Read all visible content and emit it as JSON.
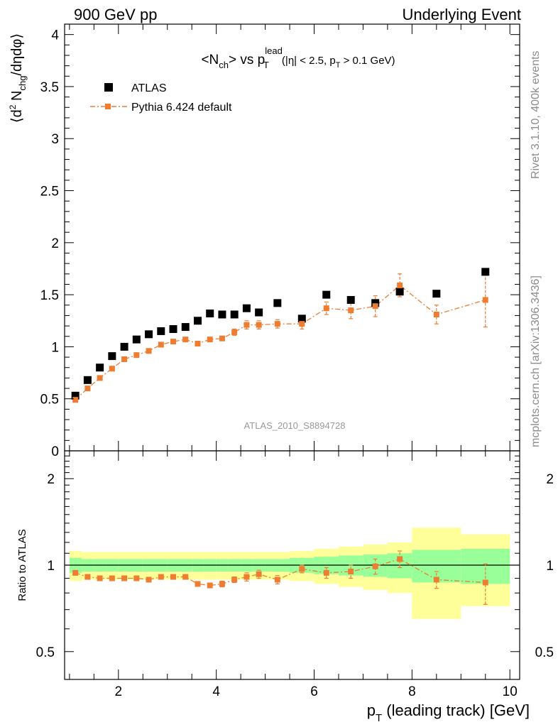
{
  "header": {
    "left": "900 GeV pp",
    "right": "Underlying Event"
  },
  "side_labels": {
    "rivet": "Rivet 3.1.10,  400k events",
    "mcplots": "mcplots.cern.ch [arXiv:1306.3436]"
  },
  "plot_title": {
    "main": "<N",
    "ch_sub": "ch",
    "vs": "> vs p",
    "lead_sup": "lead",
    "t_sub": "T",
    "cut_1": " (|η| < 2.5, p",
    "cut_t_sub": "T",
    "cut_2": " > 0.1 GeV)"
  },
  "analysis_id": "ATLAS_2010_S8894728",
  "colors": {
    "data": "#000000",
    "mc": "#ee7d32",
    "band_inner": "#99ff99",
    "band_outer": "#ffff99",
    "side_text": "#8c8c8c"
  },
  "chart_data": [
    {
      "type": "scatter",
      "panel": "main",
      "ylabel": "⟨d² N_chg/dηdφ⟩",
      "xlim": [
        0.9,
        10.2
      ],
      "ylim": [
        0,
        4.1
      ],
      "yticks": [
        "0",
        "0.5",
        "1",
        "1.5",
        "2",
        "2.5",
        "3",
        "3.5",
        "4"
      ],
      "legend_position": "top-left",
      "series": [
        {
          "name": "ATLAS",
          "marker": "square",
          "x": [
            1.12,
            1.37,
            1.62,
            1.87,
            2.12,
            2.37,
            2.62,
            2.87,
            3.12,
            3.37,
            3.62,
            3.87,
            4.12,
            4.37,
            4.62,
            4.87,
            5.25,
            5.75,
            6.25,
            6.75,
            7.25,
            7.75,
            8.5,
            9.5
          ],
          "y": [
            0.53,
            0.68,
            0.8,
            0.91,
            1.0,
            1.07,
            1.12,
            1.15,
            1.17,
            1.19,
            1.25,
            1.32,
            1.31,
            1.31,
            1.37,
            1.33,
            1.42,
            1.27,
            1.5,
            1.45,
            1.42,
            1.53,
            1.51,
            1.72
          ]
        },
        {
          "name": "Pythia 6.424 default",
          "marker": "square-dashdot-line",
          "x": [
            1.12,
            1.37,
            1.62,
            1.87,
            2.12,
            2.37,
            2.62,
            2.87,
            3.12,
            3.37,
            3.62,
            3.87,
            4.12,
            4.37,
            4.62,
            4.87,
            5.25,
            5.75,
            6.25,
            6.75,
            7.25,
            7.75,
            8.5,
            9.5
          ],
          "y": [
            0.49,
            0.6,
            0.7,
            0.79,
            0.88,
            0.92,
            0.96,
            1.02,
            1.05,
            1.07,
            1.03,
            1.07,
            1.08,
            1.14,
            1.21,
            1.21,
            1.22,
            1.22,
            1.37,
            1.35,
            1.39,
            1.59,
            1.31,
            1.45
          ],
          "yerr": [
            0.01,
            0.01,
            0.01,
            0.01,
            0.01,
            0.01,
            0.01,
            0.01,
            0.01,
            0.01,
            0.01,
            0.02,
            0.02,
            0.03,
            0.04,
            0.04,
            0.04,
            0.05,
            0.06,
            0.08,
            0.1,
            0.11,
            0.09,
            0.26
          ]
        }
      ]
    },
    {
      "type": "scatter",
      "panel": "ratio",
      "xlabel": "p_T (leading track) [GeV]",
      "ylabel": "Ratio to ATLAS",
      "xlim": [
        0.9,
        10.2
      ],
      "xticks": [
        "2",
        "4",
        "6",
        "8",
        "10"
      ],
      "yscale": "log",
      "ylim": [
        0.4,
        2.5
      ],
      "yticks": [
        "0.5",
        "1",
        "2"
      ],
      "bands": {
        "edges": [
          1.0,
          1.25,
          1.5,
          1.75,
          2.0,
          2.25,
          2.5,
          2.75,
          3.0,
          3.25,
          3.5,
          3.75,
          4.0,
          4.25,
          4.5,
          4.75,
          5.0,
          5.5,
          6.0,
          6.5,
          7.0,
          7.5,
          8.0,
          9.0,
          10.0
        ],
        "inner": [
          0.06,
          0.05,
          0.05,
          0.05,
          0.05,
          0.05,
          0.05,
          0.05,
          0.05,
          0.05,
          0.05,
          0.05,
          0.05,
          0.05,
          0.05,
          0.05,
          0.05,
          0.06,
          0.07,
          0.08,
          0.09,
          0.1,
          0.13,
          0.14
        ],
        "outer": [
          0.12,
          0.11,
          0.11,
          0.11,
          0.11,
          0.11,
          0.11,
          0.11,
          0.11,
          0.11,
          0.11,
          0.11,
          0.11,
          0.11,
          0.11,
          0.11,
          0.11,
          0.12,
          0.14,
          0.16,
          0.18,
          0.2,
          0.35,
          0.28
        ]
      },
      "series": [
        {
          "name": "Pythia 6.424 default",
          "x": [
            1.12,
            1.37,
            1.62,
            1.87,
            2.12,
            2.37,
            2.62,
            2.87,
            3.12,
            3.37,
            3.62,
            3.87,
            4.12,
            4.37,
            4.62,
            4.87,
            5.25,
            5.75,
            6.25,
            6.75,
            7.25,
            7.75,
            8.5,
            9.5
          ],
          "y": [
            0.94,
            0.91,
            0.9,
            0.9,
            0.9,
            0.9,
            0.89,
            0.91,
            0.91,
            0.91,
            0.86,
            0.85,
            0.86,
            0.89,
            0.91,
            0.93,
            0.89,
            0.97,
            0.94,
            0.95,
            0.99,
            1.05,
            0.89,
            0.87
          ],
          "yerr": [
            0.01,
            0.01,
            0.01,
            0.01,
            0.01,
            0.01,
            0.01,
            0.01,
            0.01,
            0.01,
            0.01,
            0.01,
            0.02,
            0.02,
            0.03,
            0.03,
            0.03,
            0.03,
            0.04,
            0.05,
            0.06,
            0.07,
            0.06,
            0.14
          ]
        }
      ]
    }
  ]
}
